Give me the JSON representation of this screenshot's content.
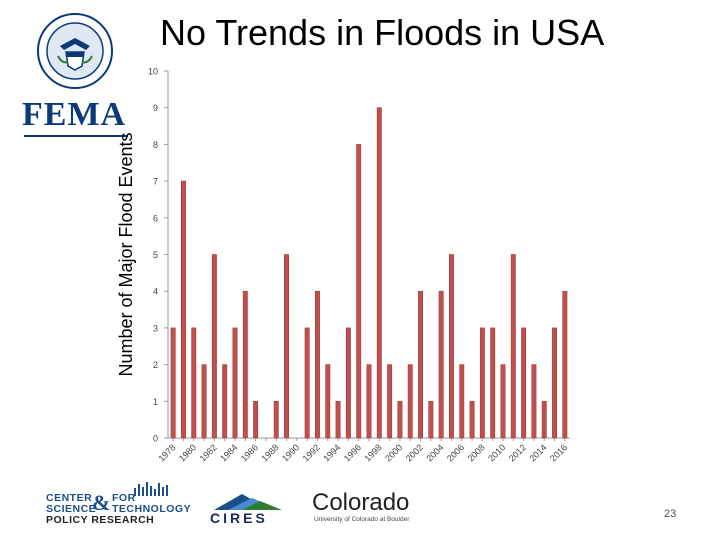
{
  "slide": {
    "title": "No Trends in Floods in USA",
    "page_number": "23"
  },
  "logos": {
    "fema": "FEMA",
    "cstpr_line1": "CENTER",
    "cstpr_line1b": "FOR",
    "cstpr_line2": "SCIENCE",
    "cstpr_amp": "&",
    "cstpr_line2b": "TECHNOLOGY",
    "cstpr_line3": "POLICY RESEARCH",
    "cires": "CIRES",
    "colorado": "Colorado",
    "colorado_sub": "University of Colorado at Boulder"
  },
  "colors": {
    "bar": "#c0504d",
    "bar_edge": "#a33c3a",
    "axis": "#999999",
    "fema_blue": "#0a3a7a",
    "cstpr_blue": "#1b4f8a"
  },
  "chart_data": {
    "type": "bar",
    "ylabel": "Number of Major Flood Events",
    "xlabel": "",
    "ylim": [
      0,
      10
    ],
    "yticks": [
      0,
      1,
      2,
      3,
      4,
      5,
      6,
      7,
      8,
      9,
      10
    ],
    "categories": [
      "1978",
      "1979",
      "1980",
      "1981",
      "1982",
      "1983",
      "1984",
      "1985",
      "1986",
      "1987",
      "1988",
      "1989",
      "1990",
      "1991",
      "1992",
      "1993",
      "1994",
      "1995",
      "1996",
      "1997",
      "1998",
      "1999",
      "2000",
      "2001",
      "2002",
      "2003",
      "2004",
      "2005",
      "2006",
      "2007",
      "2008",
      "2009",
      "2010",
      "2011",
      "2012",
      "2013",
      "2014",
      "2015",
      "2016"
    ],
    "values": [
      3,
      7,
      3,
      2,
      5,
      2,
      3,
      4,
      1,
      0,
      1,
      5,
      0,
      3,
      4,
      2,
      1,
      3,
      8,
      2,
      9,
      2,
      1,
      2,
      4,
      1,
      4,
      5,
      2,
      1,
      3,
      3,
      2,
      5,
      3,
      2,
      1,
      3,
      4
    ],
    "xtick_labels": [
      "1978",
      "1980",
      "1982",
      "1984",
      "1986",
      "1988",
      "1990",
      "1992",
      "1994",
      "1996",
      "1998",
      "2000",
      "2002",
      "2004",
      "2006",
      "2008",
      "2010",
      "2012",
      "2014",
      "2016"
    ]
  }
}
